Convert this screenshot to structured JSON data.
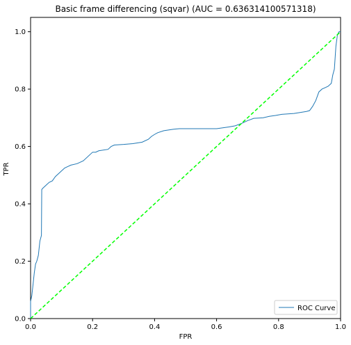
{
  "chart_data": {
    "type": "line",
    "title": "Basic frame differencing (sqvar) (AUC = 0.636314100571318)",
    "xlabel": "FPR",
    "ylabel": "TPR",
    "xlim": [
      0.0,
      1.0
    ],
    "ylim": [
      0.0,
      1.05
    ],
    "xticks": [
      0.0,
      0.2,
      0.4,
      0.6,
      0.8,
      1.0
    ],
    "yticks": [
      0.0,
      0.2,
      0.4,
      0.6,
      0.8,
      1.0
    ],
    "xtick_labels": [
      "0.0",
      "0.2",
      "0.4",
      "0.6",
      "0.8",
      "1.0"
    ],
    "ytick_labels": [
      "0.0",
      "0.2",
      "0.4",
      "0.6",
      "0.8",
      "1.0"
    ],
    "grid": false,
    "legend_position": "lower-right",
    "series": [
      {
        "name": "ROC Curve",
        "color": "#1f77b4",
        "style": "solid",
        "x": [
          0.0,
          0.0,
          0.004,
          0.006,
          0.008,
          0.012,
          0.016,
          0.02,
          0.025,
          0.03,
          0.035,
          0.036,
          0.04,
          0.05,
          0.06,
          0.07,
          0.08,
          0.09,
          0.1,
          0.11,
          0.12,
          0.13,
          0.15,
          0.17,
          0.19,
          0.2,
          0.21,
          0.22,
          0.25,
          0.26,
          0.27,
          0.3,
          0.33,
          0.36,
          0.38,
          0.39,
          0.4,
          0.41,
          0.43,
          0.46,
          0.48,
          0.5,
          0.55,
          0.6,
          0.62,
          0.64,
          0.66,
          0.68,
          0.7,
          0.72,
          0.75,
          0.77,
          0.79,
          0.81,
          0.85,
          0.89,
          0.9,
          0.91,
          0.92,
          0.93,
          0.94,
          0.95,
          0.96,
          0.965,
          0.97,
          0.975,
          0.98,
          0.985,
          0.99,
          0.995,
          1.0
        ],
        "y": [
          0.0,
          0.06,
          0.08,
          0.1,
          0.12,
          0.16,
          0.19,
          0.2,
          0.22,
          0.27,
          0.29,
          0.45,
          0.455,
          0.465,
          0.475,
          0.48,
          0.495,
          0.505,
          0.515,
          0.525,
          0.53,
          0.535,
          0.54,
          0.55,
          0.57,
          0.58,
          0.58,
          0.585,
          0.59,
          0.6,
          0.605,
          0.607,
          0.61,
          0.615,
          0.625,
          0.635,
          0.642,
          0.648,
          0.655,
          0.66,
          0.662,
          0.662,
          0.662,
          0.662,
          0.665,
          0.668,
          0.672,
          0.68,
          0.69,
          0.698,
          0.7,
          0.705,
          0.708,
          0.712,
          0.715,
          0.722,
          0.725,
          0.74,
          0.76,
          0.79,
          0.8,
          0.805,
          0.81,
          0.815,
          0.82,
          0.85,
          0.87,
          0.95,
          0.99,
          1.0,
          1.0
        ]
      },
      {
        "name": "",
        "color": "#00ff00",
        "style": "dashed",
        "x": [
          0.0,
          1.0
        ],
        "y": [
          0.0,
          1.0
        ]
      }
    ]
  }
}
